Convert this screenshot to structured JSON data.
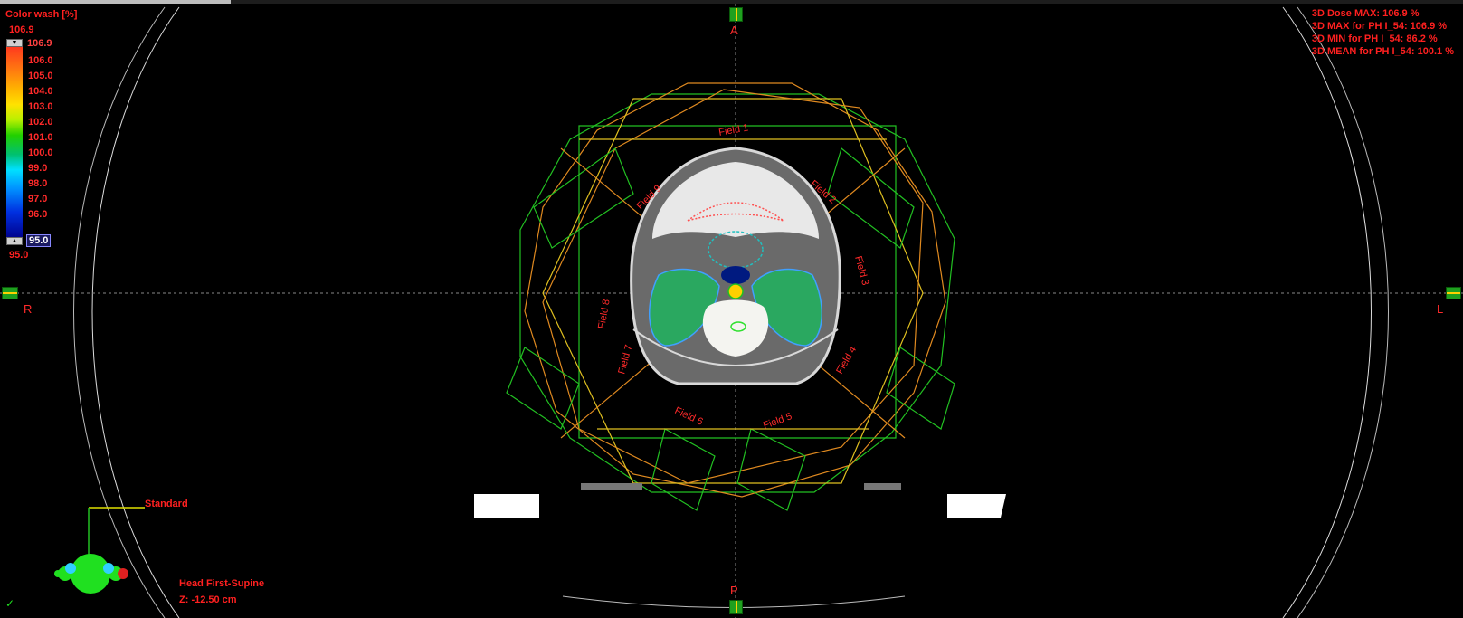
{
  "legend": {
    "title": "Color wash [%]",
    "max_label": "106.9",
    "top_value": "106.9",
    "ticks": [
      "106.0",
      "105.0",
      "104.0",
      "103.0",
      "102.0",
      "101.0",
      "100.0",
      "99.0",
      "98.0",
      "97.0",
      "96.0"
    ],
    "bottom_value": "95.0",
    "min_label": "95.0"
  },
  "stats": {
    "line1": "3D Dose MAX: 106.9 %",
    "line2": "3D MAX for PH I_54: 106.9 %",
    "line3": "3D MIN for PH I_54: 86.2 %",
    "line4": "3D MEAN for PH I_54: 100.1 %"
  },
  "orientation": {
    "anterior": "A",
    "posterior": "P",
    "right": "R",
    "left": "L"
  },
  "fields": [
    "Field 1",
    "Field 2",
    "Field 3",
    "Field 4",
    "Field 5",
    "Field 6",
    "Field 7",
    "Field 8",
    "Field 9"
  ],
  "patient": {
    "view_label": "Standard",
    "position": "Head First-Supine",
    "z": "Z: -12.50 cm"
  },
  "colors": {
    "text": "#ff2020",
    "beam_green": "#22c022",
    "beam_orange": "#e08a20",
    "beam_yellow": "#e0c020"
  },
  "icons": [
    "checkmark-icon",
    "patient-orientation-icon"
  ]
}
